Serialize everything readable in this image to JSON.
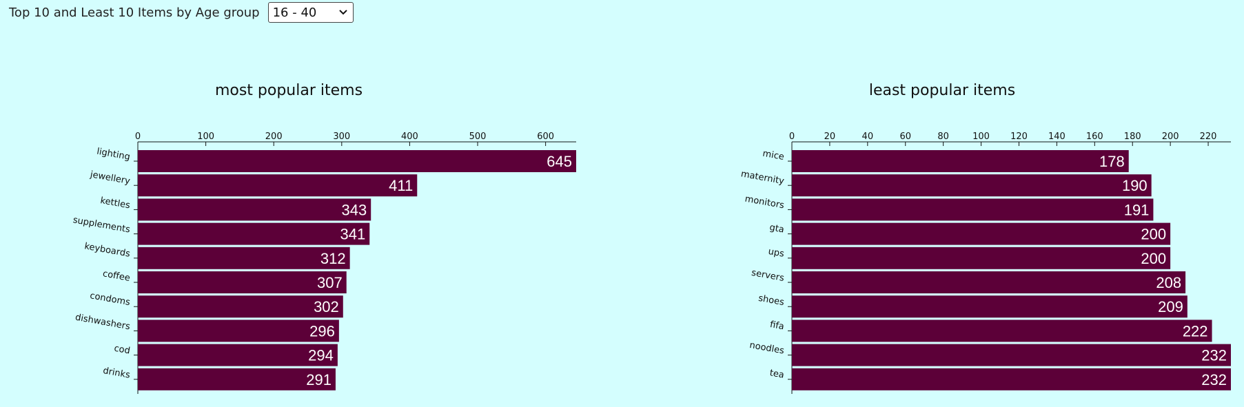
{
  "header": {
    "label": "Top 10 and Least 10 Items by Age group",
    "selected_age_group": "16 - 40"
  },
  "colors": {
    "background": "#d4fefe",
    "bar": "#5c0038",
    "value_text": "#ffffff"
  },
  "chart_data": [
    {
      "type": "bar",
      "orientation": "horizontal",
      "title": "most popular items",
      "categories": [
        "lighting",
        "jewellery",
        "kettles",
        "supplements",
        "keyboards",
        "coffee",
        "condoms",
        "dishwashers",
        "cod",
        "drinks"
      ],
      "values": [
        645,
        411,
        343,
        341,
        312,
        307,
        302,
        296,
        294,
        291
      ],
      "xlim": [
        0,
        645
      ],
      "xticks": [
        0,
        100,
        200,
        300,
        400,
        500,
        600
      ],
      "xaxis_position": "top",
      "grid": false,
      "data_labels": true
    },
    {
      "type": "bar",
      "orientation": "horizontal",
      "title": "least popular items",
      "categories": [
        "mice",
        "maternity",
        "monitors",
        "gta",
        "ups",
        "servers",
        "shoes",
        "fifa",
        "noodles",
        "tea"
      ],
      "values": [
        178,
        190,
        191,
        200,
        200,
        208,
        209,
        222,
        232,
        232
      ],
      "xlim": [
        0,
        232
      ],
      "xticks": [
        0,
        20,
        40,
        60,
        80,
        100,
        120,
        140,
        160,
        180,
        200,
        220
      ],
      "xaxis_position": "top",
      "grid": false,
      "data_labels": true
    }
  ]
}
